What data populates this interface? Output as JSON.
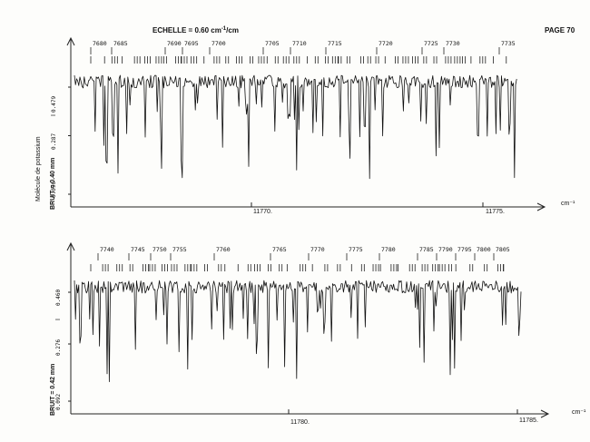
{
  "header": {
    "scale_label": "ECHELLE = 0.60 cm",
    "scale_sup": "-1",
    "scale_tail": "/cm",
    "page": "PAGE 70"
  },
  "side": {
    "molecule": "Molécule de potassium",
    "i_symbol": "I"
  },
  "chart_data": [
    {
      "type": "line",
      "xlabel": "cm⁻¹",
      "x_ticks": [
        "11770.",
        "11775."
      ],
      "noise_label": "BRUIT = 0.40 mm",
      "y_ticks": [
        "0.096",
        "0.287",
        "0.479"
      ],
      "line_numbers": [
        "7680",
        "7685",
        "7690",
        "7695",
        "7700",
        "7705",
        "7710",
        "7715",
        "7720",
        "7725",
        "7730",
        "7735"
      ]
    },
    {
      "type": "line",
      "xlabel": "cm⁻¹",
      "x_ticks": [
        "11780.",
        "11785."
      ],
      "noise_label": "BRUIT = 0.42 mm",
      "y_ticks": [
        "0.092",
        "0.276",
        "0.460"
      ],
      "line_numbers": [
        "7740",
        "7745",
        "7750",
        "7755",
        "7760",
        "7765",
        "7770",
        "7775",
        "7780",
        "7785",
        "7790",
        "7795",
        "7800",
        "7805"
      ]
    }
  ]
}
